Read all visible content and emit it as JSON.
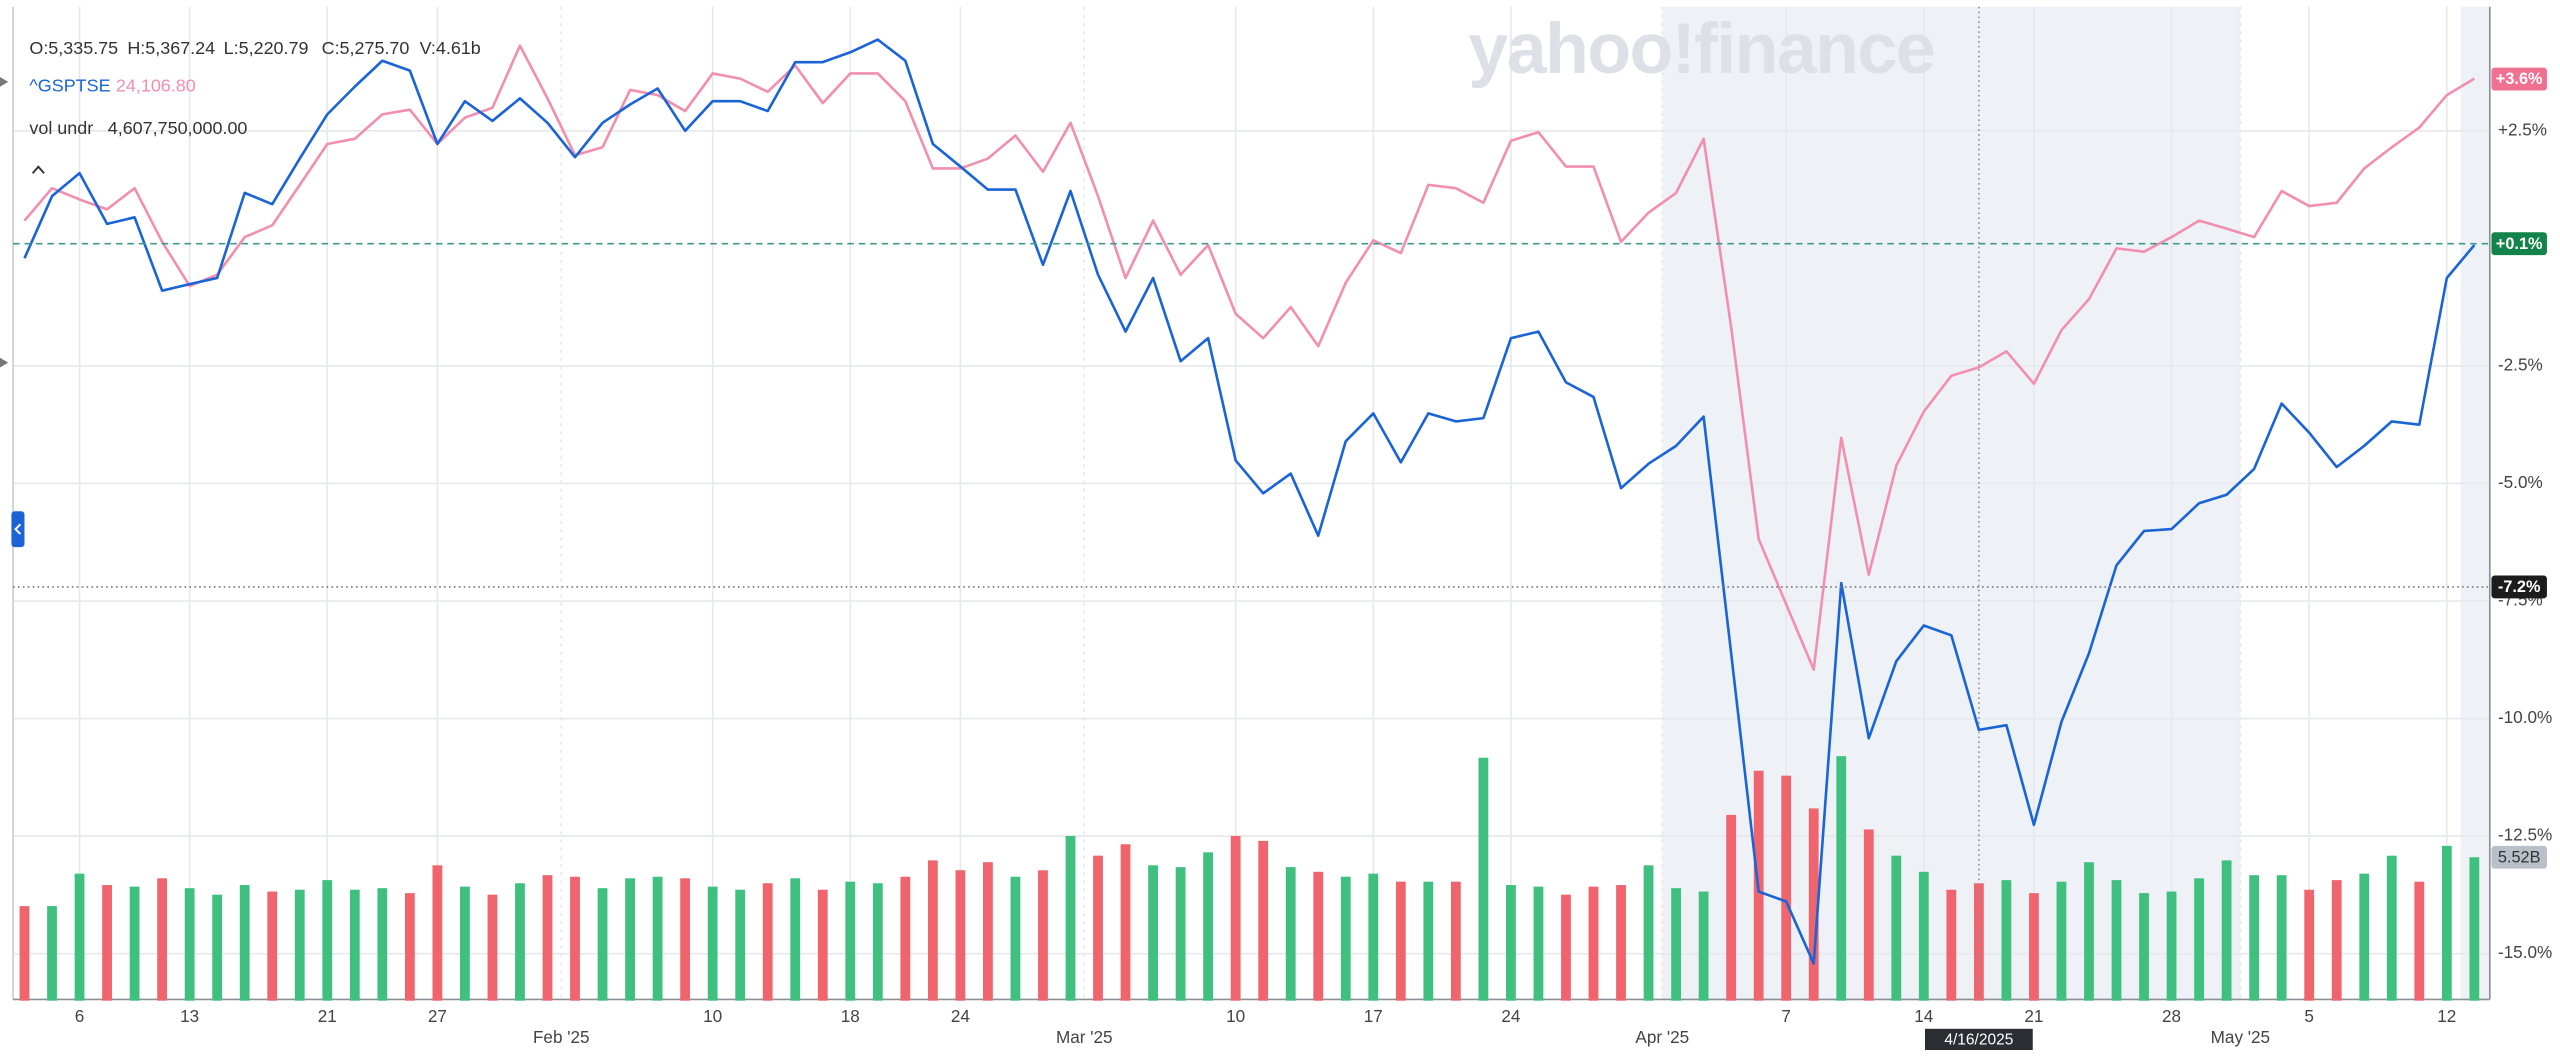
{
  "header": {
    "ohlc": [
      "O:5,335.75",
      "H:5,367.24",
      "L:5,220.79",
      "C:5,275.70",
      "V:4.61b"
    ],
    "compare_symbol": "^GSPTSE",
    "compare_price": "24,106.80",
    "volume_label": "vol undr",
    "volume_value": "4,607,750,000.00",
    "watermark": "yahoo!finance"
  },
  "chart_data": {
    "type": "line",
    "categories": [
      null,
      null,
      "6",
      null,
      null,
      null,
      "13",
      null,
      null,
      null,
      null,
      "21",
      null,
      null,
      null,
      "27",
      null,
      null,
      null,
      null,
      "Feb '25",
      null,
      null,
      null,
      null,
      "10",
      null,
      null,
      null,
      null,
      "18",
      null,
      null,
      null,
      "24",
      null,
      null,
      null,
      null,
      "Mar '25",
      null,
      null,
      null,
      null,
      "10",
      null,
      null,
      null,
      null,
      "17",
      null,
      null,
      null,
      null,
      "24",
      null,
      null,
      null,
      null,
      null,
      "Apr '25",
      null,
      null,
      null,
      "7",
      null,
      null,
      null,
      null,
      "14",
      null,
      null,
      null,
      "21",
      null,
      null,
      null,
      null,
      "28",
      null,
      null,
      "May '25",
      null,
      "5",
      null,
      null,
      null,
      null,
      "12",
      null
    ],
    "series": [
      {
        "color": "#1a64d6",
        "values": [
          -0.21,
          1.11,
          1.6,
          0.52,
          0.66,
          -0.9,
          -0.76,
          -0.63,
          1.18,
          0.94,
          1.91,
          2.85,
          3.44,
          3.99,
          3.78,
          2.22,
          3.13,
          2.71,
          3.19,
          2.67,
          1.94,
          2.67,
          3.06,
          3.4,
          2.5,
          3.13,
          3.13,
          2.92,
          3.96,
          3.96,
          4.17,
          4.44,
          3.99,
          2.22,
          1.74,
          1.25,
          1.25,
          -0.35,
          1.22,
          -0.56,
          -1.77,
          -0.63,
          -2.4,
          -1.91,
          -4.51,
          -5.21,
          -4.79,
          -6.11,
          -4.1,
          -3.51,
          -4.55,
          -3.51,
          -3.68,
          -3.61,
          -1.91,
          -1.77,
          -2.85,
          -3.16,
          -5.1,
          -4.58,
          -4.2,
          -3.58,
          -8.61,
          -13.68,
          -13.89,
          -15.21,
          -7.12,
          -10.42,
          -8.78,
          -8.02,
          -8.23,
          -10.24,
          -10.14,
          -12.26,
          -10.07,
          -8.61,
          -6.74,
          -6.01,
          -5.97,
          -5.42,
          -5.24,
          -4.69,
          -3.3,
          -3.92,
          -4.65,
          -4.2,
          -3.68,
          -3.75,
          -0.63,
          0.07
        ]
      },
      {
        "color": "#f28fae",
        "values": [
          0.59,
          1.28,
          1.04,
          0.83,
          1.28,
          0.14,
          -0.8,
          -0.56,
          0.24,
          0.49,
          1.35,
          2.22,
          2.33,
          2.85,
          2.95,
          2.22,
          2.78,
          2.99,
          4.31,
          3.19,
          1.98,
          2.15,
          3.37,
          3.26,
          2.92,
          3.72,
          3.61,
          3.33,
          3.89,
          3.09,
          3.72,
          3.72,
          3.13,
          1.7,
          1.7,
          1.91,
          2.4,
          1.63,
          2.67,
          1.11,
          -0.63,
          0.59,
          -0.56,
          0.07,
          -1.39,
          -1.91,
          -1.25,
          -2.08,
          -0.73,
          0.17,
          -0.1,
          1.35,
          1.28,
          0.97,
          2.29,
          2.47,
          1.74,
          1.74,
          0.14,
          0.76,
          1.18,
          2.33,
          -1.67,
          -6.18,
          -7.57,
          -8.96,
          -4.03,
          -6.94,
          -4.62,
          -3.47,
          -2.71,
          -2.53,
          -2.19,
          -2.88,
          -1.74,
          -1.08,
          0.0,
          -0.07,
          0.24,
          0.59,
          0.42,
          0.24,
          1.22,
          0.9,
          0.97,
          1.7,
          2.15,
          2.57,
          3.26,
          3.61
        ]
      }
    ],
    "ylim": [
      -16,
      5
    ],
    "yticks": [
      {
        "value": 2.5,
        "label": "+2.5%"
      },
      {
        "value": -2.5,
        "label": "-2.5%"
      },
      {
        "value": -5,
        "label": "-5.0%"
      },
      {
        "value": -7.5,
        "label": "-7.5%"
      },
      {
        "value": -10,
        "label": "-10.0%"
      },
      {
        "value": -12.5,
        "label": "-12.5%"
      },
      {
        "value": -15,
        "label": "-15.0%"
      }
    ],
    "grid": true,
    "volume": {
      "vlim": [
        0,
        38
      ],
      "values": [
        3.64,
        3.64,
        4.89,
        4.45,
        4.39,
        4.71,
        4.33,
        4.08,
        4.45,
        4.2,
        4.27,
        4.64,
        4.27,
        4.33,
        4.14,
        5.21,
        4.39,
        4.08,
        4.52,
        4.83,
        4.77,
        4.33,
        4.71,
        4.77,
        4.71,
        4.39,
        4.27,
        4.52,
        4.71,
        4.27,
        4.58,
        4.52,
        4.77,
        5.4,
        5.02,
        5.33,
        4.77,
        5.02,
        6.34,
        5.58,
        6.02,
        5.21,
        5.14,
        5.71,
        6.34,
        6.15,
        5.14,
        4.96,
        4.77,
        4.89,
        4.58,
        4.58,
        4.58,
        9.35,
        4.45,
        4.39,
        4.08,
        4.39,
        4.45,
        5.21,
        4.33,
        4.2,
        7.15,
        8.85,
        8.66,
        7.4,
        9.41,
        6.59,
        5.58,
        4.96,
        4.27,
        4.52,
        4.64,
        4.14,
        4.58,
        5.33,
        4.64,
        4.14,
        4.2,
        4.71,
        5.4,
        4.83,
        4.83,
        4.27,
        4.64,
        4.89,
        5.58,
        4.58,
        5.96,
        5.52
      ],
      "colors": [
        "#f0646e",
        "#3fc07f",
        "#3fc07f",
        "#f0646e",
        "#3fc07f",
        "#f0646e",
        "#3fc07f",
        "#3fc07f",
        "#3fc07f",
        "#f0646e",
        "#3fc07f",
        "#3fc07f",
        "#3fc07f",
        "#3fc07f",
        "#f0646e",
        "#f0646e",
        "#3fc07f",
        "#f0646e",
        "#3fc07f",
        "#f0646e",
        "#f0646e",
        "#3fc07f",
        "#3fc07f",
        "#3fc07f",
        "#f0646e",
        "#3fc07f",
        "#3fc07f",
        "#f0646e",
        "#3fc07f",
        "#f0646e",
        "#3fc07f",
        "#3fc07f",
        "#f0646e",
        "#f0646e",
        "#f0646e",
        "#f0646e",
        "#3fc07f",
        "#f0646e",
        "#3fc07f",
        "#f0646e",
        "#f0646e",
        "#3fc07f",
        "#3fc07f",
        "#3fc07f",
        "#f0646e",
        "#f0646e",
        "#3fc07f",
        "#f0646e",
        "#3fc07f",
        "#3fc07f",
        "#f0646e",
        "#3fc07f",
        "#f0646e",
        "#3fc07f",
        "#3fc07f",
        "#3fc07f",
        "#f0646e",
        "#f0646e",
        "#f0646e",
        "#3fc07f",
        "#3fc07f",
        "#3fc07f",
        "#f0646e",
        "#f0646e",
        "#f0646e",
        "#f0646e",
        "#3fc07f",
        "#f0646e",
        "#3fc07f",
        "#3fc07f",
        "#f0646e",
        "#f0646e",
        "#3fc07f",
        "#f0646e",
        "#3fc07f",
        "#3fc07f",
        "#3fc07f",
        "#3fc07f",
        "#3fc07f",
        "#3fc07f",
        "#3fc07f",
        "#3fc07f",
        "#3fc07f",
        "#f0646e",
        "#f0646e",
        "#3fc07f",
        "#3fc07f",
        "#f0646e",
        "#3fc07f",
        "#3fc07f"
      ],
      "badge": {
        "value": 5.52,
        "label": "5.52B",
        "color": "#b9c0c9"
      }
    },
    "badges": [
      {
        "value": 3.6,
        "label": "+3.6%",
        "color": "#f0708f"
      },
      {
        "value": 0.1,
        "label": "+0.1%",
        "color": "#12834a"
      },
      {
        "value": -7.2,
        "label": "-7.2%",
        "color": "#1c1c1c"
      }
    ],
    "crosshair": {
      "index": 71,
      "label": "4/16/2025"
    }
  }
}
